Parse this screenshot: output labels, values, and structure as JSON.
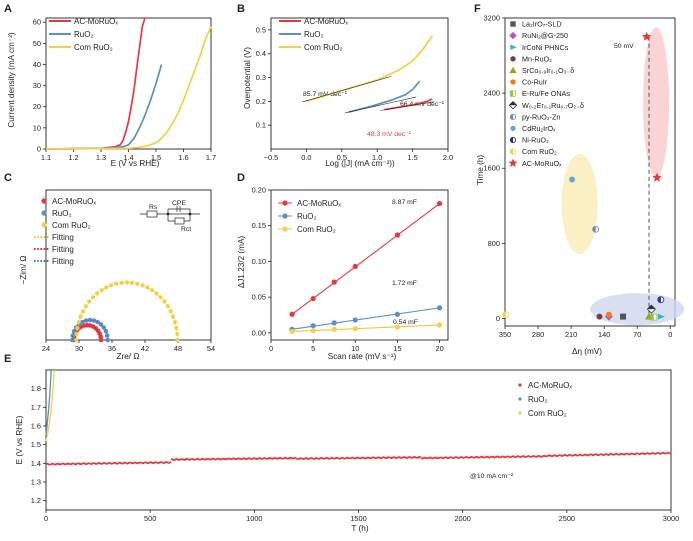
{
  "chart_data": [
    {
      "panel": "A",
      "type": "line",
      "xlabel": "E (V vs RHE)",
      "ylabel": "Current density (mA cm⁻²)",
      "xlim": [
        1.1,
        1.7
      ],
      "ylim": [
        0,
        62
      ],
      "xticks": [
        "1.1",
        "1.2",
        "1.3",
        "1.4",
        "1.5",
        "1.6",
        "1.7"
      ],
      "yticks": [
        "0",
        "10",
        "20",
        "30",
        "40",
        "50",
        "60"
      ],
      "series": [
        {
          "name": "AC-MoRuOₓ",
          "color": "#e8383d",
          "x": [
            1.1,
            1.3,
            1.35,
            1.37,
            1.38,
            1.39,
            1.4,
            1.41,
            1.42,
            1.43,
            1.44,
            1.45,
            1.46
          ],
          "y": [
            0,
            0.3,
            1,
            2,
            4,
            8,
            13,
            20,
            28,
            38,
            48,
            58,
            62
          ]
        },
        {
          "name": "RuO₂",
          "color": "#5b8fc7",
          "x": [
            1.1,
            1.32,
            1.38,
            1.4,
            1.42,
            1.44,
            1.46,
            1.48,
            1.5,
            1.52
          ],
          "y": [
            0,
            0.3,
            1,
            2,
            5,
            10,
            16,
            23,
            31,
            40
          ]
        },
        {
          "name": "Com RuO₂",
          "color": "#f7cf45",
          "x": [
            1.1,
            1.4,
            1.45,
            1.48,
            1.5,
            1.52,
            1.54,
            1.56,
            1.58,
            1.6,
            1.62,
            1.64,
            1.66,
            1.68,
            1.7
          ],
          "y": [
            0,
            0.3,
            1,
            2,
            3,
            5,
            8,
            12,
            17,
            23,
            30,
            37,
            44,
            52,
            58
          ]
        }
      ]
    },
    {
      "panel": "B",
      "type": "line",
      "xlabel": "Log (|J| (mA cm⁻²))",
      "ylabel": "Overpotential (V)",
      "xlim": [
        -0.5,
        2.0
      ],
      "ylim": [
        0.0,
        0.55
      ],
      "xticks": [
        "−0.5",
        "0.0",
        "0.5",
        "1.0",
        "1.5",
        "2.0"
      ],
      "yticks": [
        "0.1",
        "0.2",
        "0.3",
        "0.4",
        "0.5"
      ],
      "annotations": [
        "85.7 mV dec⁻¹",
        "66.4 mV dec⁻¹",
        "48.3 mV dec⁻¹"
      ],
      "series": [
        {
          "name": "AC-MoRuOₓ",
          "color": "#e8383d",
          "x": [
            1.1,
            1.3,
            1.5,
            1.6,
            1.7,
            1.78
          ],
          "y": [
            0.165,
            0.175,
            0.185,
            0.192,
            0.2,
            0.21
          ]
        },
        {
          "name": "RuO₂",
          "color": "#5b8fc7",
          "x": [
            0.6,
            0.9,
            1.2,
            1.4,
            1.5,
            1.6
          ],
          "y": [
            0.155,
            0.178,
            0.205,
            0.228,
            0.25,
            0.285
          ]
        },
        {
          "name": "Com RuO₂",
          "color": "#f7cf45",
          "x": [
            0.0,
            0.5,
            1.0,
            1.3,
            1.5,
            1.65,
            1.78
          ],
          "y": [
            0.2,
            0.245,
            0.29,
            0.33,
            0.37,
            0.42,
            0.475
          ]
        }
      ]
    },
    {
      "panel": "C",
      "type": "scatter",
      "xlabel": "Zre/ Ω",
      "ylabel": "−Zim/ Ω",
      "xlim": [
        24,
        54
      ],
      "ylim": [
        0,
        24
      ],
      "xticks": [
        "24",
        "30",
        "36",
        "42",
        "48",
        "54"
      ],
      "legend": [
        "AC-MoRuOₓ",
        "RuO₂",
        "Com RuO₂",
        "Fitting",
        "Fitting",
        "Fitting"
      ],
      "circuit_labels": [
        "Rs",
        "CPE",
        "Rct"
      ],
      "series": [
        {
          "name": "AC-MoRuOₓ",
          "color": "#e8383d",
          "center": 31.5,
          "radius": 2.5,
          "yscale": 0.95
        },
        {
          "name": "RuO₂",
          "color": "#5b8fc7",
          "center": 32.0,
          "radius": 3.2,
          "yscale": 1.0
        },
        {
          "name": "Com RuO₂",
          "color": "#f7cf45",
          "center": 38.7,
          "radius": 9.2,
          "yscale": 1.0
        }
      ]
    },
    {
      "panel": "D",
      "type": "scatter",
      "xlabel": "Scan rate (mV s⁻¹)",
      "ylabel": "ΔJ1.23/2 (mA)",
      "xlim": [
        0,
        21
      ],
      "ylim": [
        -0.01,
        0.2
      ],
      "xticks": [
        "0",
        "5",
        "10",
        "15",
        "20"
      ],
      "yticks": [
        "0.00",
        "0.05",
        "0.10",
        "0.15",
        "0.20"
      ],
      "x": [
        2.5,
        5,
        7.5,
        10,
        15,
        20
      ],
      "annotations": [
        "8.87 mF",
        "1.72 mF",
        "0.54 mF"
      ],
      "series": [
        {
          "name": "AC-MoRuOₓ",
          "color": "#e8383d",
          "values": [
            0.026,
            0.048,
            0.071,
            0.093,
            0.137,
            0.181
          ]
        },
        {
          "name": "RuO₂",
          "color": "#5b8fc7",
          "values": [
            0.005,
            0.01,
            0.014,
            0.018,
            0.026,
            0.035
          ]
        },
        {
          "name": "Com RuO₂",
          "color": "#f7cf45",
          "values": [
            0.002,
            0.003,
            0.005,
            0.006,
            0.008,
            0.011
          ]
        }
      ]
    },
    {
      "panel": "E",
      "type": "line",
      "xlabel": "T (h)",
      "ylabel": "E (V vs RHE)",
      "xlim": [
        0,
        3000
      ],
      "ylim": [
        1.15,
        1.9
      ],
      "xticks": [
        "0",
        "500",
        "1000",
        "1500",
        "2000",
        "2500",
        "3000"
      ],
      "yticks": [
        "1.2",
        "1.3",
        "1.4",
        "1.5",
        "1.6",
        "1.7",
        "1.8"
      ],
      "annotation": "@10 mA cm⁻²",
      "series": [
        {
          "name": "AC-MoRuOₓ",
          "color": "#e8383d",
          "segments": [
            [
              0,
              600,
              1.395,
              1.405
            ],
            [
              600,
              1200,
              1.42,
              1.428
            ],
            [
              1200,
              1800,
              1.425,
              1.432
            ],
            [
              1800,
              2400,
              1.428,
              1.438
            ],
            [
              2400,
              3000,
              1.44,
              1.455
            ]
          ]
        },
        {
          "name": "RuO₂",
          "color": "#5b8fc7",
          "x": [
            0,
            5,
            10,
            15,
            20,
            25
          ],
          "y": [
            1.55,
            1.6,
            1.66,
            1.72,
            1.8,
            1.9
          ]
        },
        {
          "name": "Com RuO₂",
          "color": "#f7cf45",
          "x": [
            0,
            8,
            16,
            24,
            32,
            40
          ],
          "y": [
            1.52,
            1.56,
            1.61,
            1.68,
            1.78,
            1.9
          ]
        }
      ]
    },
    {
      "panel": "F",
      "type": "scatter",
      "xlabel": "Δη (mV)",
      "ylabel": "Time (h)",
      "xlim": [
        350,
        -10
      ],
      "ylim": [
        -80,
        3200
      ],
      "xticks": [
        "350",
        "280",
        "210",
        "140",
        "70",
        "0"
      ],
      "yticks": [
        "0",
        "800",
        "1600",
        "2400",
        "3200"
      ],
      "annotation": "50 mV",
      "points": [
        {
          "name": "La₂IrO₇-SLD",
          "color": "#555555",
          "marker": "square",
          "x": 100,
          "y": 20
        },
        {
          "name": "RuNi₂@G-250",
          "color": "#a65bc9",
          "marker": "diamond",
          "x": 130,
          "y": 20
        },
        {
          "name": "IrCoNi PHNCs",
          "color": "#1fbfcf",
          "marker": "triangle-right",
          "x": 20,
          "y": 20
        },
        {
          "name": "Mn-RuO₂",
          "color": "#7b3f3f",
          "marker": "circle",
          "x": 150,
          "y": 20
        },
        {
          "name": "SrCo₀.₉Ir₀.₁O₃₋δ",
          "color": "#8faa1f",
          "marker": "triangle-up",
          "x": 45,
          "y": 20
        },
        {
          "name": "Co-RuIr",
          "color": "#f07d1a",
          "marker": "circle",
          "x": 130,
          "y": 40
        },
        {
          "name": "E-Ru/Fe ONAs",
          "color": "#9bc23d",
          "marker": "square-half",
          "x": 35,
          "y": 15
        },
        {
          "name": "W₀.₂Er₀.₁Ru₀.₇O₂₋δ",
          "color": "#333333",
          "marker": "diamond-half",
          "x": 40,
          "y": 100
        },
        {
          "name": "py-RuO₂-Zn",
          "color": "#6b82c9",
          "marker": "circle-half",
          "x": 158,
          "y": 950
        },
        {
          "name": "CdRu₂IrOₓ",
          "color": "#6aa7d8",
          "marker": "circle",
          "x": 208,
          "y": 1480
        },
        {
          "name": "Ni-RuO₂",
          "color": "#1a2fa8",
          "marker": "circle-half",
          "x": 20,
          "y": 200
        },
        {
          "name": "Com RuO₂",
          "color": "#f7cf45",
          "marker": "circle-half",
          "x": 348,
          "y": 40
        },
        {
          "name": "AC-MoRuOₓ",
          "color": "#e8383d",
          "marker": "star",
          "x": 50,
          "y": 3000
        },
        {
          "name": "AC-MoRuOₓ",
          "color": "#e8383d",
          "marker": "star",
          "x": 28,
          "y": 1500
        }
      ]
    }
  ],
  "panel_labels": [
    "A",
    "B",
    "C",
    "D",
    "E",
    "F"
  ]
}
